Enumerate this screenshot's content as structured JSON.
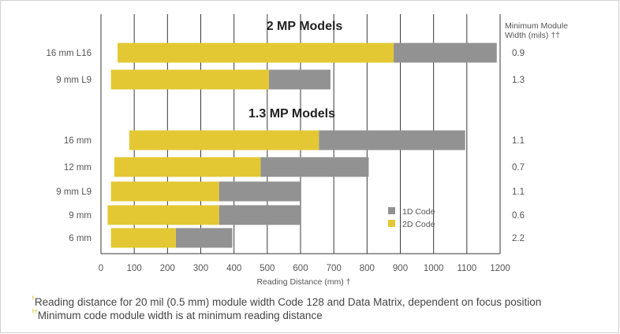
{
  "chart_data": {
    "type": "bar",
    "orientation": "horizontal",
    "stacked": "overlay",
    "xlabel": "Reading Distance (mm) †",
    "xlim": [
      0,
      1200
    ],
    "xticks": [
      0,
      100,
      200,
      300,
      400,
      500,
      600,
      700,
      800,
      900,
      1000,
      1100,
      1200
    ],
    "grid": true,
    "legend_position": "lower-right-inside",
    "legend": [
      {
        "name": "1D Code",
        "color": "#929292"
      },
      {
        "name": "2D Code",
        "color": "#e3c833"
      }
    ],
    "right_header": "Minimum Module Width (mils) ††",
    "right_header_lines": [
      "Minimum Module",
      "Width (mils) ††"
    ],
    "groups": [
      {
        "title": "2 MP Models",
        "rows": [
          {
            "label": "16 mm L16",
            "code2d": [
              50,
              880
            ],
            "code1d": [
              880,
              1190
            ],
            "min_width": "0.9"
          },
          {
            "label": "9 mm L9",
            "code2d": [
              30,
              505
            ],
            "code1d": [
              505,
              690
            ],
            "min_width": "1.3"
          }
        ]
      },
      {
        "title": "1.3 MP Models",
        "rows": [
          {
            "label": "16 mm",
            "code2d": [
              85,
              655
            ],
            "code1d": [
              655,
              1095
            ],
            "min_width": "1.1"
          },
          {
            "label": "12 mm",
            "code2d": [
              40,
              480
            ],
            "code1d": [
              480,
              805
            ],
            "min_width": "0.7"
          },
          {
            "label": "9 mm L9",
            "code2d": [
              30,
              355
            ],
            "code1d": [
              355,
              600
            ],
            "min_width": "1.1"
          },
          {
            "label": "9 mm",
            "code2d": [
              20,
              355
            ],
            "code1d": [
              355,
              600
            ],
            "min_width": "0.6"
          },
          {
            "label": "6 mm",
            "code2d": [
              30,
              225
            ],
            "code1d": [
              225,
              395
            ],
            "min_width": "2.2"
          }
        ]
      }
    ]
  },
  "footnotes": {
    "dagger_mark": "†",
    "note1": "Reading distance for 20 mil (0.5 mm) module width Code 128 and Data Matrix, dependent on focus position",
    "double_dagger_mark": "††",
    "note2": "Minimum code module width is at minimum reading distance"
  }
}
